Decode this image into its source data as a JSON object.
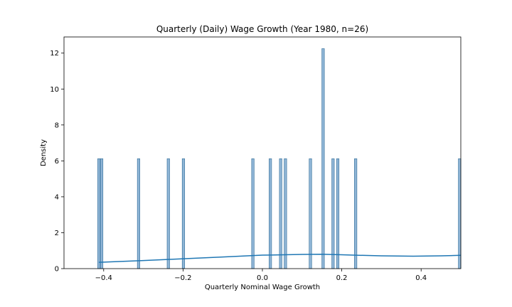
{
  "chart_data": {
    "type": "histogram",
    "title": "Quarterly (Daily) Wage Growth (Year 1980, n=26)",
    "xlabel": "Quarterly Nominal Wage Growth",
    "ylabel": "Density",
    "xlim": [
      -0.5,
      0.5
    ],
    "ylim": [
      0,
      12.9
    ],
    "xticks": [
      -0.4,
      -0.2,
      0.0,
      0.2,
      0.4
    ],
    "xtick_labels": [
      "−0.4",
      "−0.2",
      "0.0",
      "0.2",
      "0.4"
    ],
    "yticks": [
      0,
      2,
      4,
      6,
      8,
      10,
      12
    ],
    "ytick_labels": [
      "0",
      "2",
      "4",
      "6",
      "8",
      "10",
      "12"
    ],
    "bin_width": 0.0063,
    "bars": [
      {
        "x": -0.412,
        "density": 6.12
      },
      {
        "x": -0.405,
        "density": 6.12
      },
      {
        "x": -0.312,
        "density": 6.12
      },
      {
        "x": -0.237,
        "density": 6.12
      },
      {
        "x": -0.199,
        "density": 6.12
      },
      {
        "x": -0.024,
        "density": 6.12
      },
      {
        "x": 0.02,
        "density": 6.12
      },
      {
        "x": 0.046,
        "density": 6.12
      },
      {
        "x": 0.058,
        "density": 6.12
      },
      {
        "x": 0.121,
        "density": 6.12
      },
      {
        "x": 0.153,
        "density": 12.25
      },
      {
        "x": 0.178,
        "density": 6.12
      },
      {
        "x": 0.19,
        "density": 6.12
      },
      {
        "x": 0.235,
        "density": 6.12
      },
      {
        "x": 0.497,
        "density": 6.12
      }
    ],
    "kde": {
      "x": [
        -0.412,
        -0.3,
        -0.2,
        -0.1,
        0.0,
        0.1,
        0.15,
        0.2,
        0.3,
        0.38,
        0.45,
        0.5
      ],
      "y": [
        0.35,
        0.45,
        0.55,
        0.65,
        0.75,
        0.79,
        0.8,
        0.77,
        0.71,
        0.69,
        0.71,
        0.74
      ]
    },
    "colors": {
      "bar_fill": "#8fb5d6",
      "bar_edge": "#2e6b97",
      "kde_line": "#1f77b4",
      "axis": "#000000"
    },
    "grid": false,
    "legend": "none"
  }
}
